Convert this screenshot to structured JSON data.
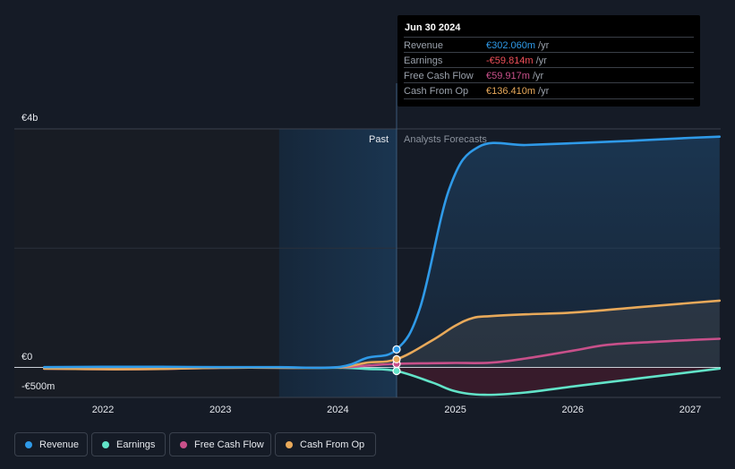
{
  "chart_data": {
    "type": "line",
    "y_axis_labels": [
      "€4b",
      "€0",
      "-€500m"
    ],
    "ylim": [
      -500,
      4000
    ],
    "x_ticks": [
      "2022",
      "2023",
      "2024",
      "2025",
      "2026",
      "2027"
    ],
    "grid": "horizontal",
    "period_labels": {
      "past": "Past",
      "forecast": "Analysts Forecasts"
    },
    "series": [
      {
        "name": "Revenue",
        "color": "#2f9ae8",
        "area": true,
        "x": [
          2021.5,
          2022.0,
          2022.5,
          2023.0,
          2023.5,
          2024.0,
          2024.25,
          2024.5,
          2024.7,
          2024.95,
          2025.2,
          2025.6,
          2026.0,
          2026.5,
          2027.0,
          2027.25
        ],
        "y": [
          5,
          10,
          10,
          5,
          5,
          5,
          160,
          302.06,
          1000,
          3000,
          3700,
          3730,
          3760,
          3800,
          3850,
          3870
        ]
      },
      {
        "name": "Earnings",
        "color": "#62e3c8",
        "area": true,
        "x": [
          2021.5,
          2022.0,
          2022.5,
          2023.0,
          2023.5,
          2024.0,
          2024.25,
          2024.5,
          2024.8,
          2025.0,
          2025.25,
          2025.6,
          2026.0,
          2026.5,
          2027.0,
          2027.25
        ],
        "y": [
          -20,
          -15,
          -15,
          -5,
          -5,
          -5,
          -25,
          -59.814,
          -250,
          -400,
          -460,
          -420,
          -320,
          -200,
          -80,
          -20
        ]
      },
      {
        "name": "Free Cash Flow",
        "color": "#c8508a",
        "area": false,
        "x": [
          2021.5,
          2022.0,
          2022.5,
          2023.0,
          2023.5,
          2024.0,
          2024.25,
          2024.5,
          2024.8,
          2025.0,
          2025.3,
          2025.6,
          2026.0,
          2026.3,
          2026.7,
          2027.0,
          2027.25
        ],
        "y": [
          -20,
          -30,
          -25,
          -5,
          -5,
          0,
          30,
          59.917,
          70,
          75,
          80,
          150,
          280,
          380,
          430,
          460,
          480
        ]
      },
      {
        "name": "Cash From Op",
        "color": "#e8a95a",
        "area": true,
        "x": [
          2021.5,
          2022.0,
          2022.5,
          2023.0,
          2023.5,
          2024.0,
          2024.25,
          2024.5,
          2024.8,
          2025.0,
          2025.15,
          2025.3,
          2025.6,
          2026.0,
          2026.5,
          2027.0,
          2027.25
        ],
        "y": [
          -20,
          -30,
          -25,
          -5,
          -5,
          0,
          80,
          136.41,
          450,
          700,
          830,
          860,
          890,
          920,
          1000,
          1080,
          1120
        ]
      }
    ],
    "highlight_date": "Jun 30 2024"
  },
  "tooltip": {
    "date": "Jun 30 2024",
    "rows": [
      {
        "label": "Revenue",
        "value": "€302.060m",
        "unit": "/yr",
        "color": "#2f9ae8"
      },
      {
        "label": "Earnings",
        "value": "-€59.814m",
        "unit": "/yr",
        "color": "#f0505a"
      },
      {
        "label": "Free Cash Flow",
        "value": "€59.917m",
        "unit": "/yr",
        "color": "#c8508a"
      },
      {
        "label": "Cash From Op",
        "value": "€136.410m",
        "unit": "/yr",
        "color": "#e8a95a"
      }
    ]
  },
  "legend": [
    {
      "label": "Revenue",
      "color": "#2f9ae8"
    },
    {
      "label": "Earnings",
      "color": "#62e3c8"
    },
    {
      "label": "Free Cash Flow",
      "color": "#c8508a"
    },
    {
      "label": "Cash From Op",
      "color": "#e8a95a"
    }
  ]
}
